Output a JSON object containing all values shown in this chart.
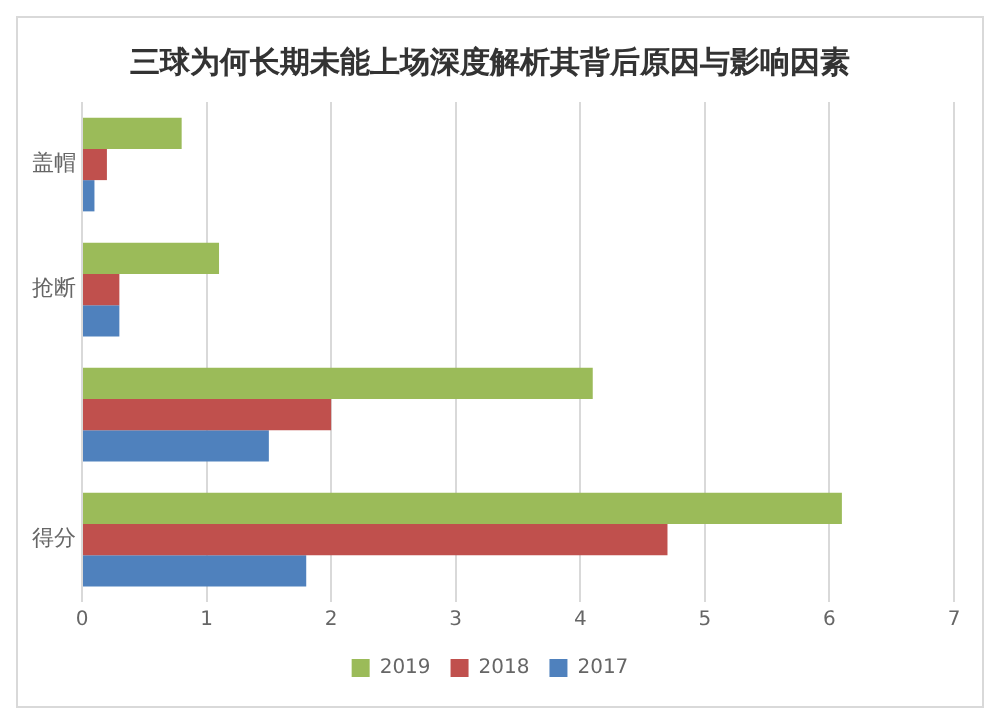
{
  "chart_data": {
    "type": "bar",
    "orientation": "horizontal",
    "title": "三球为何长期未能上场深度解析其背后原因与影响因素",
    "categories": [
      "盖帽",
      "抢断",
      null,
      "得分"
    ],
    "series": [
      {
        "name": "2019",
        "color": "#9bbb59",
        "values": [
          0.8,
          1.1,
          4.1,
          6.1
        ]
      },
      {
        "name": "2018",
        "color": "#c0504d",
        "values": [
          0.2,
          0.3,
          2.0,
          4.7
        ]
      },
      {
        "name": "2017",
        "color": "#4f81bd",
        "values": [
          0.1,
          0.3,
          1.5,
          1.8
        ]
      }
    ],
    "xlim": [
      0,
      7
    ],
    "xticks": [
      0,
      1,
      2,
      3,
      4,
      5,
      6,
      7
    ],
    "grid": "x",
    "legend": "bottom"
  }
}
